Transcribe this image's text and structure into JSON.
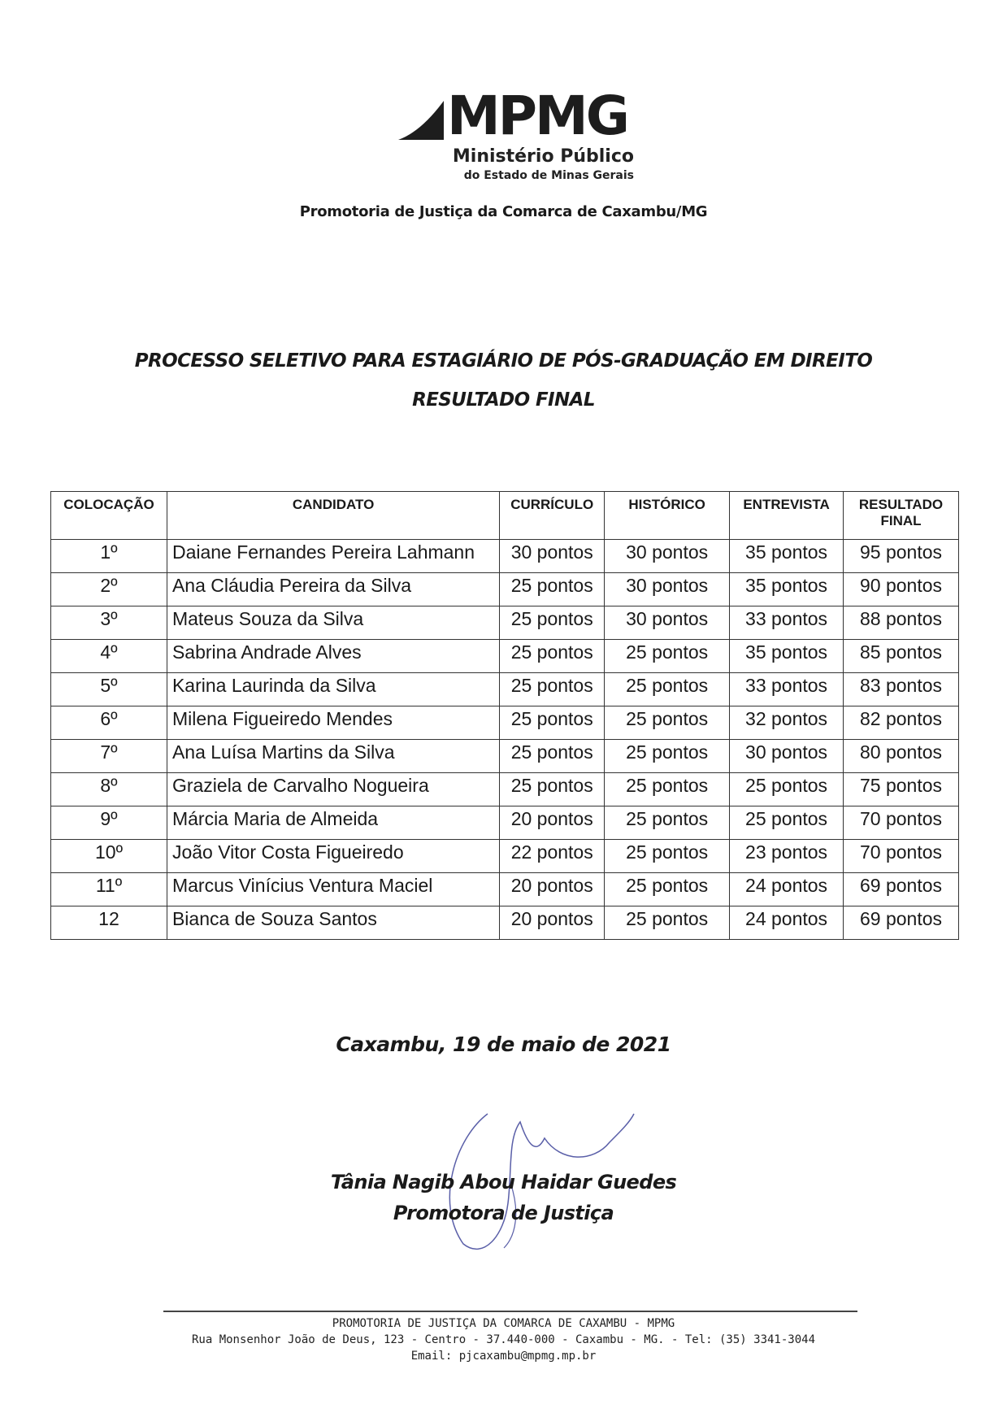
{
  "logo": {
    "text": "MPMG",
    "line1": "Ministério Público",
    "line2": "do Estado de Minas Gerais"
  },
  "header": {
    "organization": "Promotoria de Justiça da Comarca de Caxambu/MG"
  },
  "document": {
    "title": "PROCESSO SELETIVO PARA ESTAGIÁRIO DE PÓS-GRADUAÇÃO EM DIREITO",
    "subtitle": "RESULTADO FINAL"
  },
  "table": {
    "headers": [
      "COLOCAÇÃO",
      "CANDIDATO",
      "CURRÍCULO",
      "HISTÓRICO",
      "ENTREVISTA",
      "RESULTADO FINAL"
    ],
    "rows": [
      [
        "1º",
        "Daiane Fernandes Pereira Lahmann",
        "30 pontos",
        "30 pontos",
        "35 pontos",
        "95 pontos"
      ],
      [
        "2º",
        "Ana Cláudia Pereira da Silva",
        "25 pontos",
        "30 pontos",
        "35 pontos",
        "90 pontos"
      ],
      [
        "3º",
        "Mateus Souza da Silva",
        "25 pontos",
        "30 pontos",
        "33 pontos",
        "88 pontos"
      ],
      [
        "4º",
        "Sabrina Andrade Alves",
        "25 pontos",
        "25 pontos",
        "35 pontos",
        "85 pontos"
      ],
      [
        "5º",
        "Karina Laurinda da Silva",
        "25 pontos",
        "25 pontos",
        "33 pontos",
        "83 pontos"
      ],
      [
        "6º",
        "Milena Figueiredo Mendes",
        "25 pontos",
        "25 pontos",
        "32 pontos",
        "82 pontos"
      ],
      [
        "7º",
        "Ana Luísa Martins da Silva",
        "25 pontos",
        "25 pontos",
        "30 pontos",
        "80 pontos"
      ],
      [
        "8º",
        "Graziela de Carvalho Nogueira",
        "25 pontos",
        "25 pontos",
        "25 pontos",
        "75 pontos"
      ],
      [
        "9º",
        "Márcia Maria de Almeida",
        "20 pontos",
        "25 pontos",
        "25 pontos",
        "70 pontos"
      ],
      [
        "10º",
        "João Vitor Costa Figueiredo",
        "22 pontos",
        "25 pontos",
        "23 pontos",
        "70 pontos"
      ],
      [
        "11º",
        "Marcus Vinícius Ventura Maciel",
        "20 pontos",
        "25 pontos",
        "24 pontos",
        "69 pontos"
      ],
      [
        "12",
        "Bianca de Souza Santos",
        "20 pontos",
        "25 pontos",
        "24 pontos",
        "69 pontos"
      ]
    ]
  },
  "closing": {
    "date": "Caxambu, 19 de maio de 2021",
    "signer_name": "Tânia Nagib Abou Haidar Guedes",
    "signer_role": "Promotora de Justiça",
    "signature_color": "#5a5fa8"
  },
  "footer": {
    "line1": "PROMOTORIA DE JUSTIÇA DA COMARCA DE CAXAMBU - MPMG",
    "line2": "Rua Monsenhor João de Deus, 123 - Centro - 37.440-000 - Caxambu - MG. - Tel: (35) 3341-3044",
    "line3": "Email: pjcaxambu@mpmg.mp.br"
  }
}
